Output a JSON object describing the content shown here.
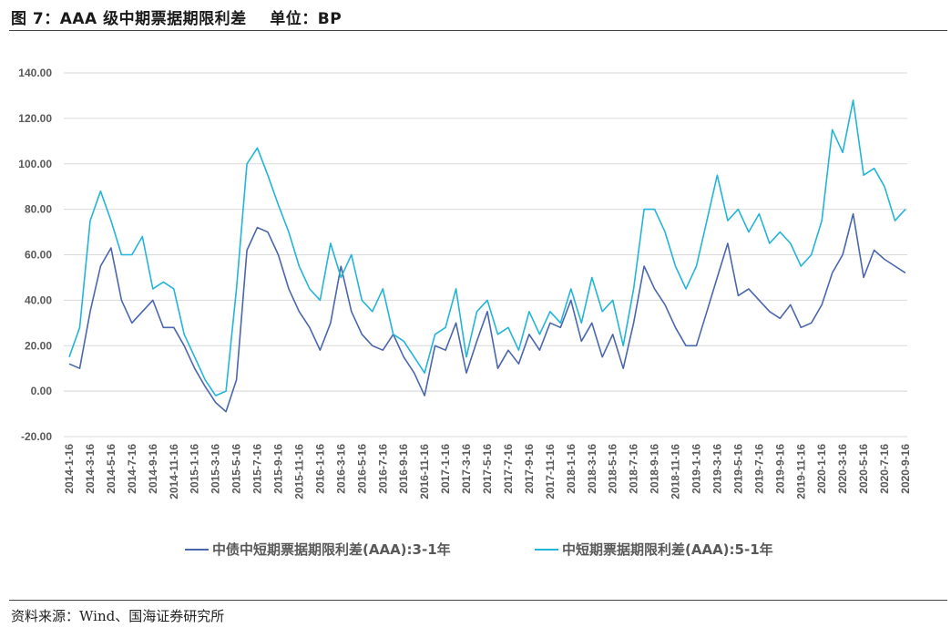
{
  "figure": {
    "title": "图 7：AAA 级中期票据期限利差    单位：BP",
    "source": "资料来源：Wind、国海证券研究所"
  },
  "colors": {
    "series1": "#4a67ad",
    "series2": "#22b5d8",
    "grid": "#d9d9d9",
    "text": "#595959"
  },
  "chart_data": {
    "type": "line",
    "title": "",
    "xlabel": "",
    "ylabel": "",
    "ylim": [
      -20,
      140
    ],
    "yticks": [
      "-20.00",
      "0.00",
      "20.00",
      "40.00",
      "60.00",
      "80.00",
      "100.00",
      "120.00",
      "140.00"
    ],
    "grid": "horizontal",
    "legend_position": "bottom",
    "x_tick_labels": [
      "2014-1-16",
      "2014-3-16",
      "2014-5-16",
      "2014-7-16",
      "2014-9-16",
      "2014-11-16",
      "2015-1-16",
      "2015-3-16",
      "2015-5-16",
      "2015-7-16",
      "2015-9-16",
      "2015-11-16",
      "2016-1-16",
      "2016-3-16",
      "2016-5-16",
      "2016-7-16",
      "2016-9-16",
      "2016-11-16",
      "2017-1-16",
      "2017-3-16",
      "2017-5-16",
      "2017-7-16",
      "2017-9-16",
      "2017-11-16",
      "2018-1-16",
      "2018-3-16",
      "2018-5-16",
      "2018-7-16",
      "2018-9-16",
      "2018-11-16",
      "2019-1-16",
      "2019-3-16",
      "2019-5-16",
      "2019-7-16",
      "2019-9-16",
      "2019-11-16",
      "2020-1-16",
      "2020-3-16",
      "2020-5-16",
      "2020-7-16",
      "2020-9-16"
    ],
    "x": [
      "2014-1",
      "2014-2",
      "2014-3",
      "2014-4",
      "2014-5",
      "2014-6",
      "2014-7",
      "2014-8",
      "2014-9",
      "2014-10",
      "2014-11",
      "2014-12",
      "2015-1",
      "2015-2",
      "2015-3",
      "2015-4",
      "2015-5",
      "2015-6",
      "2015-7",
      "2015-8",
      "2015-9",
      "2015-10",
      "2015-11",
      "2015-12",
      "2016-1",
      "2016-2",
      "2016-3",
      "2016-4",
      "2016-5",
      "2016-6",
      "2016-7",
      "2016-8",
      "2016-9",
      "2016-10",
      "2016-11",
      "2016-12",
      "2017-1",
      "2017-2",
      "2017-3",
      "2017-4",
      "2017-5",
      "2017-6",
      "2017-7",
      "2017-8",
      "2017-9",
      "2017-10",
      "2017-11",
      "2017-12",
      "2018-1",
      "2018-2",
      "2018-3",
      "2018-4",
      "2018-5",
      "2018-6",
      "2018-7",
      "2018-8",
      "2018-9",
      "2018-10",
      "2018-11",
      "2018-12",
      "2019-1",
      "2019-2",
      "2019-3",
      "2019-4",
      "2019-5",
      "2019-6",
      "2019-7",
      "2019-8",
      "2019-9",
      "2019-10",
      "2019-11",
      "2019-12",
      "2020-1",
      "2020-2",
      "2020-3",
      "2020-4",
      "2020-5",
      "2020-6",
      "2020-7",
      "2020-8",
      "2020-9"
    ],
    "series": [
      {
        "name": "中债中短期票据期限利差(AAA):3-1年",
        "values": [
          12,
          10,
          35,
          55,
          63,
          40,
          30,
          35,
          40,
          28,
          28,
          20,
          10,
          2,
          -5,
          -9,
          5,
          62,
          72,
          70,
          60,
          45,
          35,
          28,
          18,
          30,
          55,
          35,
          25,
          20,
          18,
          25,
          15,
          8,
          -2,
          20,
          18,
          30,
          8,
          22,
          35,
          10,
          18,
          12,
          25,
          18,
          30,
          28,
          40,
          22,
          30,
          15,
          25,
          10,
          30,
          55,
          45,
          38,
          28,
          20,
          20,
          35,
          50,
          65,
          42,
          45,
          40,
          35,
          32,
          38,
          28,
          30,
          38,
          52,
          60,
          78,
          50,
          62,
          58,
          55,
          52
        ]
      },
      {
        "name": "中短期票据期限利差(AAA):5-1年",
        "values": [
          15,
          28,
          75,
          88,
          75,
          60,
          60,
          68,
          45,
          48,
          45,
          25,
          15,
          5,
          -2,
          0,
          45,
          100,
          107,
          95,
          82,
          70,
          55,
          45,
          40,
          65,
          50,
          60,
          40,
          35,
          45,
          25,
          22,
          15,
          8,
          25,
          28,
          45,
          15,
          35,
          40,
          25,
          28,
          18,
          35,
          25,
          35,
          30,
          45,
          30,
          50,
          35,
          40,
          20,
          45,
          80,
          80,
          70,
          55,
          45,
          55,
          75,
          95,
          75,
          80,
          70,
          78,
          65,
          70,
          65,
          55,
          60,
          75,
          115,
          105,
          128,
          95,
          98,
          90,
          75,
          80
        ]
      }
    ]
  }
}
